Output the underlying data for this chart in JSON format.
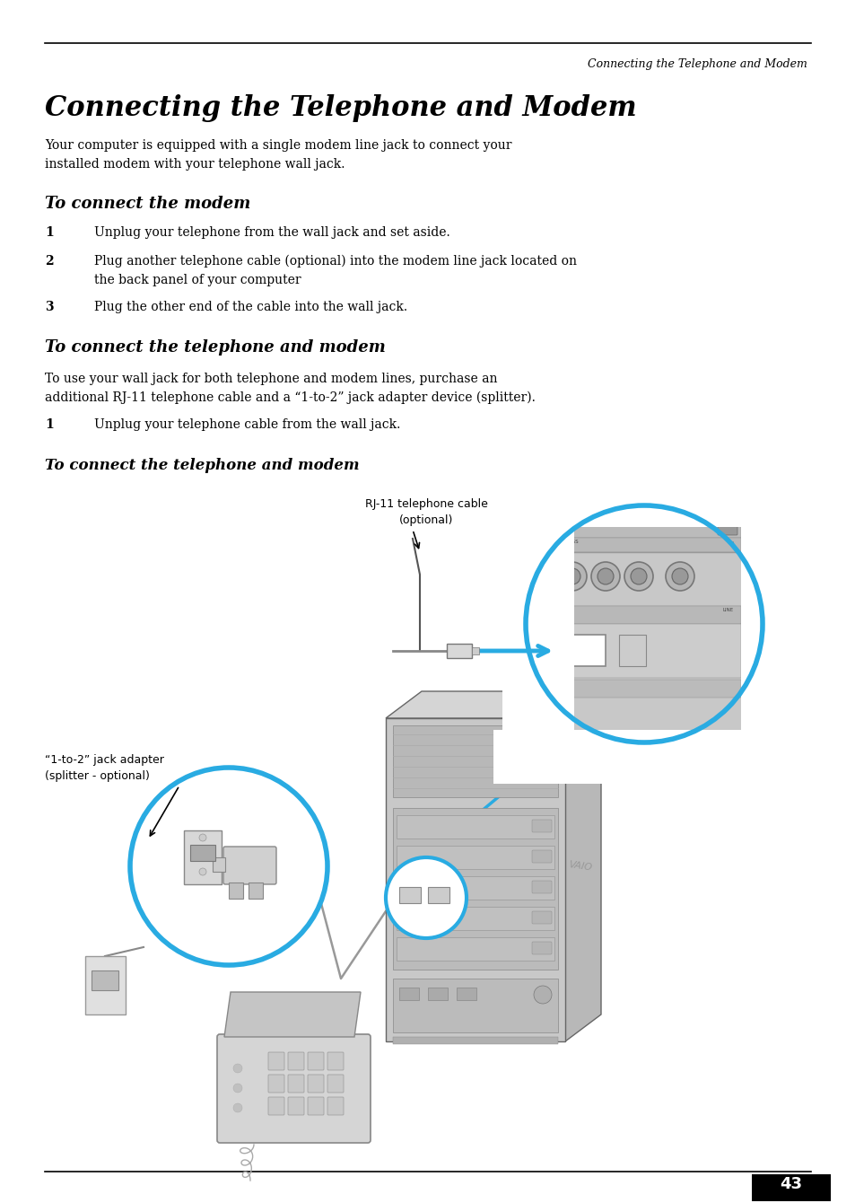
{
  "header_text": "Connecting the Telephone and Modem",
  "title": "Connecting the Telephone and Modem",
  "body_text_1": "Your computer is equipped with a single modem line jack to connect your\ninstalled modem with your telephone wall jack.",
  "section1_heading": "To connect the modem",
  "step1_num": "1",
  "step1_text": "Unplug your telephone from the wall jack and set aside.",
  "step2_num": "2",
  "step2_text": "Plug another telephone cable (optional) into the modem line jack located on\nthe back panel of your computer",
  "step3_num": "3",
  "step3_text": "Plug the other end of the cable into the wall jack.",
  "section2_heading": "To connect the telephone and modem",
  "body_text_2": "To use your wall jack for both telephone and modem lines, purchase an\nadditional RJ-11 telephone cable and a “1-to-2” jack adapter device (splitter).",
  "step4_num": "1",
  "step4_text": "Unplug your telephone cable from the wall jack.",
  "section3_heading": "To connect the telephone and modem",
  "label_rj11_line1": "RJ-11 telephone cable",
  "label_rj11_line2": "(optional)",
  "label_splitter_line1": "“1-to-2” jack adapter",
  "label_splitter_line2": "(splitter - optional)",
  "page_number": "43",
  "bg": "#ffffff",
  "black": "#000000",
  "gray_dark": "#666666",
  "gray_med": "#aaaaaa",
  "gray_light": "#cccccc",
  "gray_lighter": "#dddddd",
  "gray_bg": "#e8e8e8",
  "accent": "#29abe2",
  "accent_light": "#d0eef8"
}
